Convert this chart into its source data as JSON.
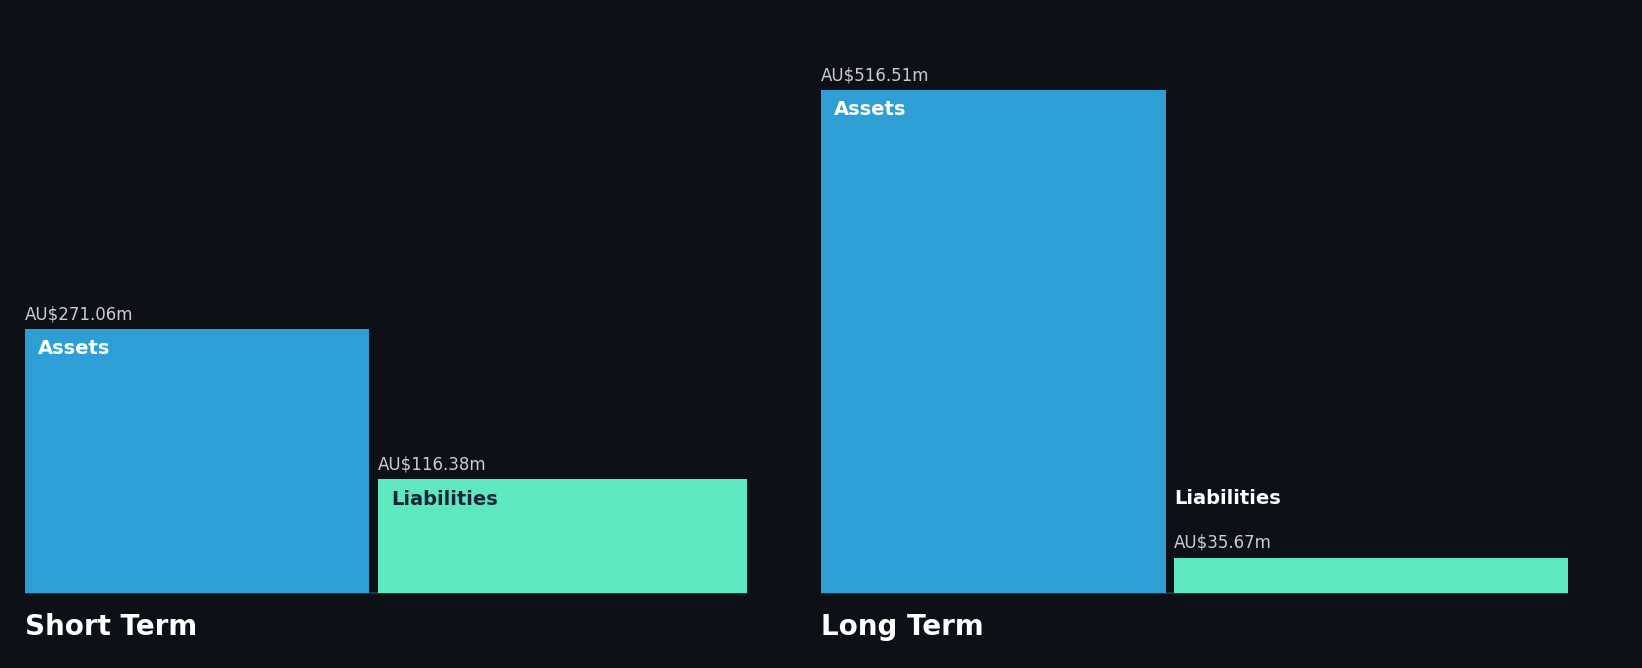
{
  "background_color": "#0d1117",
  "groups": [
    {
      "label": "Short Term",
      "assets_value": 271.06,
      "liabilities_value": 116.38,
      "assets_label": "AU$271.06m",
      "liabilities_label": "AU$116.38m",
      "liabilities_label_inside": true
    },
    {
      "label": "Long Term",
      "assets_value": 516.51,
      "liabilities_value": 35.67,
      "assets_label": "AU$516.51m",
      "liabilities_label": "AU$35.67m",
      "liabilities_label_inside": false
    }
  ],
  "assets_color": "#2e9fd4",
  "liabilities_color": "#5de8c0",
  "bar_label_assets": "Assets",
  "bar_label_liabilities": "Liabilities",
  "text_color_white": "#ffffff",
  "text_color_dark": "#1a2535",
  "value_label_color": "#c8cdd5",
  "group_label_fontsize": 20,
  "bar_inner_fontsize": 14,
  "value_fontsize": 12,
  "max_value": 516.51,
  "baseline_color": "#2a3040"
}
